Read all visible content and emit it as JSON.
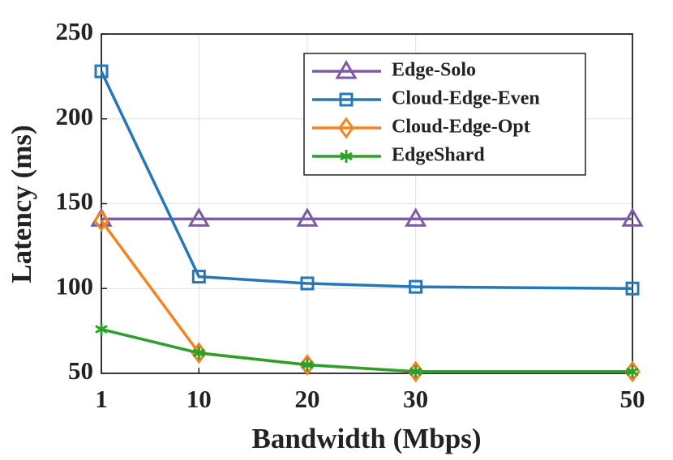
{
  "chart_data": {
    "type": "line",
    "xlabel": "Bandwidth (Mbps)",
    "ylabel": "Latency (ms)",
    "x": [
      1,
      10,
      20,
      30,
      50
    ],
    "xlim": [
      1,
      50
    ],
    "xticks": [
      1,
      10,
      20,
      30,
      50
    ],
    "ylim": [
      50,
      250
    ],
    "yticks": [
      50,
      100,
      150,
      200,
      250
    ],
    "grid": true,
    "legend": "upper right",
    "series": [
      {
        "name": "Edge-Solo",
        "color": "#7e5ba6",
        "marker": "triangle",
        "values": [
          141,
          141,
          141,
          141,
          141
        ]
      },
      {
        "name": "Cloud-Edge-Even",
        "color": "#2677b8",
        "marker": "square",
        "values": [
          228,
          107,
          103,
          101,
          100
        ]
      },
      {
        "name": "Cloud-Edge-Opt",
        "color": "#f5841f",
        "marker": "diamond",
        "values": [
          140,
          62,
          55,
          51,
          51
        ]
      },
      {
        "name": "EdgeShard",
        "color": "#2ca02c",
        "marker": "asterisk",
        "values": [
          76,
          62,
          55,
          51,
          51
        ]
      }
    ]
  }
}
